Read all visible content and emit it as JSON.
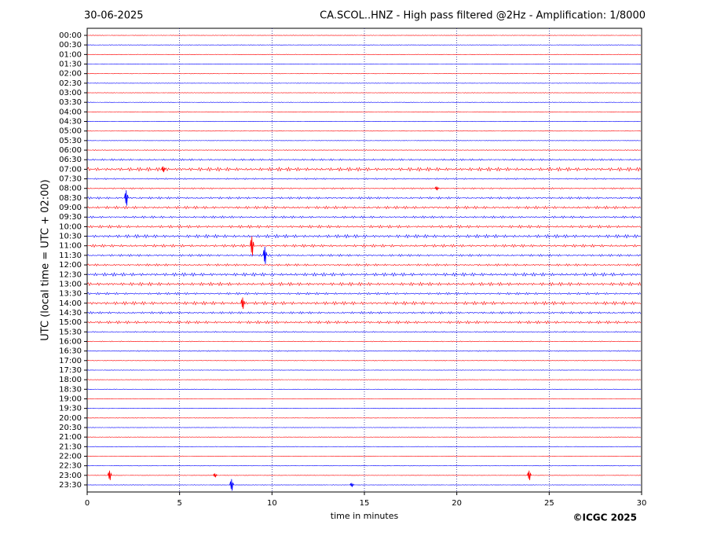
{
  "chart_data": {
    "type": "helicorder",
    "date": "30-06-2025",
    "title": "CA.SCOL..HNZ - High pass filtered @2Hz - Amplification: 1/8000",
    "xlabel": "time in minutes",
    "ylabel": "UTC (local time = UTC + 02:00)",
    "copyright": "©ICGC 2025",
    "xlim": [
      0,
      30
    ],
    "xticks": [
      0,
      5,
      10,
      15,
      20,
      25,
      30
    ],
    "grid": true,
    "colors": [
      "#ff0000",
      "#0000ff"
    ],
    "categories": [
      "00:00",
      "00:30",
      "01:00",
      "01:30",
      "02:00",
      "02:30",
      "03:00",
      "03:30",
      "04:00",
      "04:30",
      "05:00",
      "05:30",
      "06:00",
      "06:30",
      "07:00",
      "07:30",
      "08:00",
      "08:30",
      "09:00",
      "09:30",
      "10:00",
      "10:30",
      "11:00",
      "11:30",
      "12:00",
      "12:30",
      "13:00",
      "13:30",
      "14:00",
      "14:30",
      "15:00",
      "15:30",
      "16:00",
      "16:30",
      "17:00",
      "17:30",
      "18:00",
      "18:30",
      "19:00",
      "19:30",
      "20:00",
      "20:30",
      "21:00",
      "21:30",
      "22:00",
      "22:30",
      "23:00",
      "23:30"
    ],
    "noise": [
      0.03,
      0.03,
      0.03,
      0.03,
      0.03,
      0.03,
      0.03,
      0.03,
      0.03,
      0.03,
      0.03,
      0.03,
      0.05,
      0.1,
      0.2,
      0.08,
      0.08,
      0.12,
      0.15,
      0.12,
      0.15,
      0.18,
      0.15,
      0.12,
      0.12,
      0.18,
      0.18,
      0.12,
      0.18,
      0.12,
      0.15,
      0.06,
      0.05,
      0.06,
      0.04,
      0.03,
      0.03,
      0.03,
      0.03,
      0.03,
      0.03,
      0.03,
      0.03,
      0.03,
      0.03,
      0.03,
      0.03,
      0.03
    ],
    "events": [
      {
        "row": 14,
        "x": 4.1,
        "amp": 0.3
      },
      {
        "row": 16,
        "x": 18.9,
        "amp": 0.2
      },
      {
        "row": 17,
        "x": 2.1,
        "amp": 0.8
      },
      {
        "row": 22,
        "x": 8.9,
        "amp": 1.0
      },
      {
        "row": 23,
        "x": 9.6,
        "amp": 0.9
      },
      {
        "row": 28,
        "x": 8.4,
        "amp": 0.6
      },
      {
        "row": 46,
        "x": 1.2,
        "amp": 0.5
      },
      {
        "row": 46,
        "x": 6.9,
        "amp": 0.2
      },
      {
        "row": 46,
        "x": 23.9,
        "amp": 0.5
      },
      {
        "row": 47,
        "x": 7.8,
        "amp": 0.6
      },
      {
        "row": 47,
        "x": 14.3,
        "amp": 0.2
      }
    ]
  }
}
